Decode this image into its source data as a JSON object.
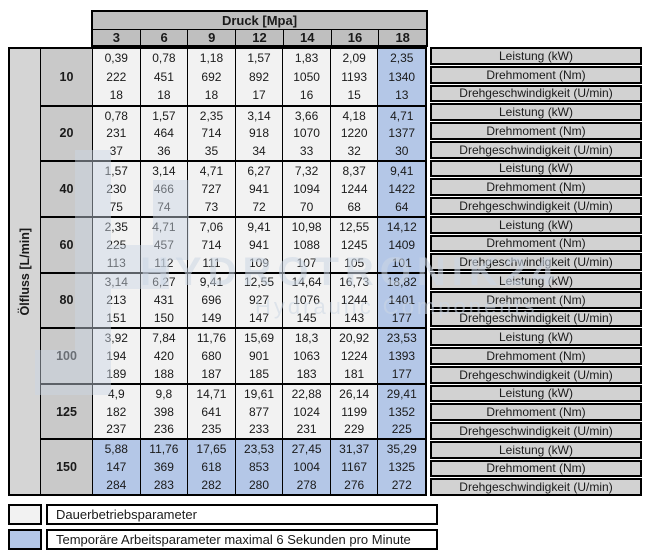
{
  "table": {
    "pressure_title": "Druck [Mpa]",
    "flow_title": "Ölfluss [L/min]",
    "pressures": [
      "3",
      "6",
      "9",
      "12",
      "14",
      "16",
      "18"
    ],
    "row_labels": [
      "Leistung (kW)",
      "Drehmoment (Nm)",
      "Drehgeschwindigkeit (U/min)"
    ],
    "groups": [
      {
        "flow": "10",
        "leistung": [
          "0,39",
          "0,78",
          "1,18",
          "1,57",
          "1,83",
          "2,09",
          "2,35"
        ],
        "drehmoment": [
          "222",
          "451",
          "692",
          "892",
          "1050",
          "1193",
          "1340"
        ],
        "drehzahl": [
          "18",
          "18",
          "18",
          "17",
          "16",
          "15",
          "13"
        ],
        "all_blue": false
      },
      {
        "flow": "20",
        "leistung": [
          "0,78",
          "1,57",
          "2,35",
          "3,14",
          "3,66",
          "4,18",
          "4,71"
        ],
        "drehmoment": [
          "231",
          "464",
          "714",
          "918",
          "1070",
          "1220",
          "1377"
        ],
        "drehzahl": [
          "37",
          "36",
          "35",
          "34",
          "33",
          "32",
          "30"
        ],
        "all_blue": false
      },
      {
        "flow": "40",
        "leistung": [
          "1,57",
          "3,14",
          "4,71",
          "6,27",
          "7,32",
          "8,37",
          "9,41"
        ],
        "drehmoment": [
          "230",
          "466",
          "727",
          "941",
          "1094",
          "1244",
          "1422"
        ],
        "drehzahl": [
          "75",
          "74",
          "73",
          "72",
          "70",
          "68",
          "64"
        ],
        "all_blue": false
      },
      {
        "flow": "60",
        "leistung": [
          "2,35",
          "4,71",
          "7,06",
          "9,41",
          "10,98",
          "12,55",
          "14,12"
        ],
        "drehmoment": [
          "225",
          "457",
          "714",
          "941",
          "1088",
          "1245",
          "1409"
        ],
        "drehzahl": [
          "113",
          "112",
          "111",
          "109",
          "107",
          "105",
          "101"
        ],
        "all_blue": false
      },
      {
        "flow": "80",
        "leistung": [
          "3,14",
          "6,27",
          "9,41",
          "12,55",
          "14,64",
          "16,73",
          "18,82"
        ],
        "drehmoment": [
          "213",
          "431",
          "696",
          "927",
          "1076",
          "1244",
          "1401"
        ],
        "drehzahl": [
          "151",
          "150",
          "149",
          "147",
          "145",
          "143",
          "177"
        ],
        "all_blue": false
      },
      {
        "flow": "100",
        "leistung": [
          "3,92",
          "7,84",
          "11,76",
          "15,69",
          "18,3",
          "20,92",
          "23,53"
        ],
        "drehmoment": [
          "194",
          "420",
          "680",
          "901",
          "1063",
          "1224",
          "1393"
        ],
        "drehzahl": [
          "189",
          "188",
          "187",
          "185",
          "183",
          "181",
          "177"
        ],
        "all_blue": false
      },
      {
        "flow": "125",
        "leistung": [
          "4,9",
          "9,8",
          "14,71",
          "19,61",
          "22,88",
          "26,14",
          "29,41"
        ],
        "drehmoment": [
          "182",
          "398",
          "641",
          "877",
          "1024",
          "1199",
          "1352"
        ],
        "drehzahl": [
          "237",
          "236",
          "235",
          "233",
          "231",
          "229",
          "225"
        ],
        "all_blue": false
      },
      {
        "flow": "150",
        "leistung": [
          "5,88",
          "11,76",
          "17,65",
          "23,53",
          "27,45",
          "31,37",
          "35,29"
        ],
        "drehmoment": [
          "147",
          "369",
          "618",
          "853",
          "1004",
          "1167",
          "1325"
        ],
        "drehzahl": [
          "284",
          "283",
          "282",
          "280",
          "278",
          "276",
          "272"
        ],
        "all_blue": true
      }
    ]
  },
  "legend": [
    {
      "swatch": "gray",
      "label": "Dauerbetriebsparameter"
    },
    {
      "swatch": "blue",
      "label": "Temporäre Arbeitsparameter maximal 6 Sekunden pro Minute"
    }
  ],
  "watermark": {
    "line1": "HYDROTRONIK24",
    "line2": "Hydraulic Components"
  },
  "colors": {
    "header_gray": "#bfbfbf",
    "flow_gray": "#c9c9c9",
    "oelfluss_gray": "#d5d5d5",
    "label_gray": "#d2d2d2",
    "cell_bg": "#f2f2f2",
    "highlight_blue": "#b4c7e7",
    "watermark_blue": "#ccd7e5"
  }
}
